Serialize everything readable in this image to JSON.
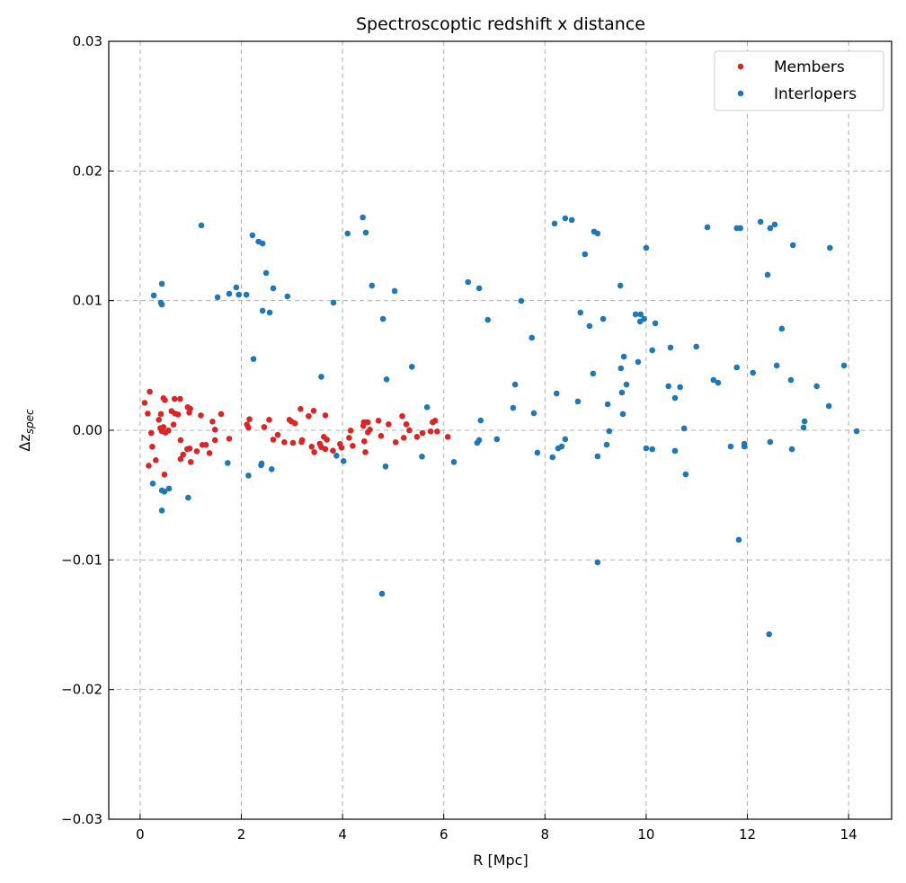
{
  "chart_data": {
    "type": "scatter",
    "title": "Spectroscoptic redshift x distance",
    "xlabel": "R [Mpc]",
    "ylabel": "Δz",
    "ylabel_sub": "spec",
    "xlim": [
      -0.62,
      14.85
    ],
    "ylim": [
      -0.03,
      0.03
    ],
    "grid": true,
    "legend_position": "top-right",
    "xticks": [
      0,
      2,
      4,
      6,
      8,
      10,
      12,
      14
    ],
    "xtick_labels": [
      "0",
      "2",
      "4",
      "6",
      "8",
      "10",
      "12",
      "14"
    ],
    "yticks": [
      -0.03,
      -0.02,
      -0.01,
      0.0,
      0.01,
      0.02,
      0.03
    ],
    "ytick_labels": [
      "−0.03",
      "−0.02",
      "−0.01",
      "0.00",
      "0.01",
      "0.02",
      "0.03"
    ],
    "y_scale_note": "point y values in units of 1e-3",
    "series": [
      {
        "name": "Members",
        "color": "#d62728",
        "points": [
          [
            0.09,
            2.12
          ],
          [
            0.19,
            2.98
          ],
          [
            0.15,
            1.29
          ],
          [
            0.22,
            -0.21
          ],
          [
            0.24,
            -1.27
          ],
          [
            0.17,
            -2.73
          ],
          [
            0.31,
            -2.31
          ],
          [
            0.41,
            1.25
          ],
          [
            0.37,
            0.81
          ],
          [
            0.4,
            0.16
          ],
          [
            0.46,
            0.25
          ],
          [
            0.43,
            -0.07
          ],
          [
            0.5,
            -0.18
          ],
          [
            0.56,
            -0.02
          ],
          [
            0.46,
            2.47
          ],
          [
            0.49,
            2.33
          ],
          [
            0.48,
            -3.42
          ],
          [
            0.68,
            2.42
          ],
          [
            0.79,
            2.42
          ],
          [
            0.62,
            1.48
          ],
          [
            0.69,
            1.29
          ],
          [
            0.75,
            1.22
          ],
          [
            0.66,
            0.44
          ],
          [
            0.94,
            1.78
          ],
          [
            0.99,
            1.66
          ],
          [
            0.97,
            1.36
          ],
          [
            0.8,
            -0.76
          ],
          [
            0.85,
            -1.87
          ],
          [
            0.8,
            -2.22
          ],
          [
            0.93,
            -1.45
          ],
          [
            0.98,
            -1.41
          ],
          [
            1.0,
            -2.45
          ],
          [
            1.12,
            -1.62
          ],
          [
            1.2,
            1.15
          ],
          [
            1.23,
            -1.13
          ],
          [
            1.3,
            -1.13
          ],
          [
            1.37,
            -1.76
          ],
          [
            1.43,
            0.67
          ],
          [
            1.48,
            0.05
          ],
          [
            1.48,
            -0.76
          ],
          [
            1.6,
            1.25
          ],
          [
            1.76,
            -0.65
          ],
          [
            2.11,
            0.44
          ],
          [
            2.16,
            0.85
          ],
          [
            2.14,
            0.21
          ],
          [
            2.45,
            0.25
          ],
          [
            2.55,
            0.81
          ],
          [
            2.63,
            -0.72
          ],
          [
            2.72,
            -0.35
          ],
          [
            2.85,
            -0.92
          ],
          [
            2.95,
            0.81
          ],
          [
            2.99,
            0.67
          ],
          [
            3.06,
            0.53
          ],
          [
            3.02,
            -0.97
          ],
          [
            3.17,
            1.64
          ],
          [
            3.2,
            -0.76
          ],
          [
            3.19,
            -0.9
          ],
          [
            3.33,
            1.09
          ],
          [
            3.43,
            1.5
          ],
          [
            3.39,
            -1.27
          ],
          [
            3.44,
            -1.69
          ],
          [
            3.55,
            -1.04
          ],
          [
            3.58,
            -1.29
          ],
          [
            3.63,
            -0.51
          ],
          [
            3.69,
            -0.72
          ],
          [
            3.66,
            1.15
          ],
          [
            3.66,
            -1.45
          ],
          [
            3.81,
            -1.57
          ],
          [
            3.95,
            -1.06
          ],
          [
            3.98,
            -1.34
          ],
          [
            4.13,
            -0.58
          ],
          [
            4.16,
            -0.02
          ],
          [
            4.2,
            -1.2
          ],
          [
            4.42,
            0.62
          ],
          [
            4.41,
            0.35
          ],
          [
            4.46,
            0.62
          ],
          [
            4.5,
            0.62
          ],
          [
            4.5,
            -0.16
          ],
          [
            4.54,
            0.05
          ],
          [
            4.43,
            -0.85
          ],
          [
            4.45,
            -1.69
          ],
          [
            4.71,
            0.74
          ],
          [
            4.76,
            -0.44
          ],
          [
            4.91,
            0.46
          ],
          [
            5.05,
            -0.92
          ],
          [
            5.18,
            1.09
          ],
          [
            5.26,
            0.46
          ],
          [
            5.21,
            -0.58
          ],
          [
            5.32,
            0.0
          ],
          [
            5.47,
            -0.51
          ],
          [
            5.58,
            -0.21
          ],
          [
            5.74,
            -0.09
          ],
          [
            5.78,
            0.62
          ],
          [
            5.83,
            0.74
          ],
          [
            5.87,
            -0.09
          ],
          [
            6.08,
            -0.51
          ]
        ]
      },
      {
        "name": "Interlopers",
        "color": "#1f77b4",
        "points": [
          [
            0.25,
            -4.11
          ],
          [
            0.43,
            -4.64
          ],
          [
            0.48,
            -4.73
          ],
          [
            0.57,
            -4.5
          ],
          [
            0.43,
            -6.19
          ],
          [
            0.95,
            -5.2
          ],
          [
            1.73,
            -2.52
          ],
          [
            2.14,
            -3.49
          ],
          [
            2.39,
            -2.7
          ],
          [
            2.4,
            -2.56
          ],
          [
            2.6,
            -3.0
          ],
          [
            3.88,
            -1.96
          ],
          [
            4.02,
            -2.38
          ],
          [
            4.85,
            -2.79
          ],
          [
            5.57,
            -2.03
          ],
          [
            6.2,
            -2.45
          ],
          [
            5.67,
            1.78
          ],
          [
            4.87,
            3.93
          ],
          [
            5.37,
            4.9
          ],
          [
            3.58,
            4.13
          ],
          [
            2.24,
            5.5
          ],
          [
            1.21,
            15.8
          ],
          [
            0.27,
            10.4
          ],
          [
            0.43,
            11.3
          ],
          [
            0.41,
            9.84
          ],
          [
            0.43,
            9.7
          ],
          [
            1.53,
            10.26
          ],
          [
            1.76,
            10.53
          ],
          [
            1.9,
            11.02
          ],
          [
            1.95,
            10.46
          ],
          [
            2.1,
            10.46
          ],
          [
            2.22,
            15.04
          ],
          [
            2.34,
            14.55
          ],
          [
            2.42,
            14.41
          ],
          [
            2.49,
            12.13
          ],
          [
            2.63,
            10.95
          ],
          [
            2.42,
            9.22
          ],
          [
            2.56,
            9.08
          ],
          [
            2.91,
            10.33
          ],
          [
            3.82,
            9.84
          ],
          [
            4.1,
            15.18
          ],
          [
            4.4,
            16.42
          ],
          [
            4.46,
            15.25
          ],
          [
            4.58,
            11.16
          ],
          [
            4.8,
            8.59
          ],
          [
            5.03,
            10.74
          ],
          [
            4.78,
            -12.61
          ],
          [
            6.48,
            11.43
          ],
          [
            6.7,
            10.95
          ],
          [
            6.87,
            8.52
          ],
          [
            6.73,
            0.76
          ],
          [
            6.66,
            -0.97
          ],
          [
            6.7,
            -0.76
          ],
          [
            7.05,
            -0.69
          ],
          [
            7.37,
            1.73
          ],
          [
            7.41,
            3.53
          ],
          [
            7.53,
            9.98
          ],
          [
            7.74,
            7.14
          ],
          [
            7.78,
            1.32
          ],
          [
            7.85,
            -1.73
          ],
          [
            8.19,
            15.94
          ],
          [
            8.23,
            2.84
          ],
          [
            8.15,
            -2.08
          ],
          [
            8.26,
            -1.39
          ],
          [
            8.33,
            -1.25
          ],
          [
            8.4,
            -0.69
          ],
          [
            8.4,
            16.35
          ],
          [
            8.53,
            16.22
          ],
          [
            8.79,
            13.58
          ],
          [
            8.7,
            9.08
          ],
          [
            8.88,
            8.04
          ],
          [
            8.65,
            2.22
          ],
          [
            8.95,
            4.37
          ],
          [
            8.97,
            15.32
          ],
          [
            9.04,
            15.18
          ],
          [
            9.15,
            8.59
          ],
          [
            9.24,
            2.01
          ],
          [
            9.27,
            -0.07
          ],
          [
            9.22,
            -1.11
          ],
          [
            9.04,
            -2.01
          ],
          [
            9.04,
            -10.19
          ],
          [
            9.49,
            11.16
          ],
          [
            9.5,
            4.78
          ],
          [
            9.56,
            5.68
          ],
          [
            9.52,
            2.91
          ],
          [
            9.61,
            3.53
          ],
          [
            9.54,
            1.25
          ],
          [
            9.79,
            8.94
          ],
          [
            9.89,
            8.94
          ],
          [
            9.88,
            8.39
          ],
          [
            9.96,
            8.59
          ],
          [
            9.84,
            5.27
          ],
          [
            10.0,
            14.07
          ],
          [
            10.0,
            -1.39
          ],
          [
            10.12,
            -1.46
          ],
          [
            10.12,
            6.17
          ],
          [
            10.18,
            8.25
          ],
          [
            10.44,
            3.4
          ],
          [
            10.48,
            6.38
          ],
          [
            10.57,
            2.49
          ],
          [
            10.57,
            -1.59
          ],
          [
            10.67,
            3.33
          ],
          [
            10.75,
            0.14
          ],
          [
            10.78,
            -3.4
          ],
          [
            10.99,
            6.45
          ],
          [
            11.21,
            15.66
          ],
          [
            11.33,
            3.88
          ],
          [
            11.42,
            3.67
          ],
          [
            11.67,
            -1.25
          ],
          [
            11.79,
            4.85
          ],
          [
            11.79,
            15.59
          ],
          [
            11.86,
            15.59
          ],
          [
            11.83,
            -8.45
          ],
          [
            11.94,
            -1.04
          ],
          [
            11.94,
            -1.25
          ],
          [
            12.11,
            4.44
          ],
          [
            12.26,
            16.08
          ],
          [
            12.4,
            11.99
          ],
          [
            12.45,
            15.59
          ],
          [
            12.54,
            15.87
          ],
          [
            12.45,
            -0.9
          ],
          [
            12.43,
            -15.73
          ],
          [
            12.58,
            4.99
          ],
          [
            12.68,
            7.83
          ],
          [
            12.86,
            3.88
          ],
          [
            12.88,
            -1.46
          ],
          [
            12.9,
            14.28
          ],
          [
            13.11,
            0.21
          ],
          [
            13.13,
            0.69
          ],
          [
            13.37,
            3.4
          ],
          [
            13.61,
            1.87
          ],
          [
            13.63,
            14.07
          ],
          [
            13.91,
            4.99
          ],
          [
            14.16,
            -0.07
          ]
        ]
      }
    ]
  }
}
